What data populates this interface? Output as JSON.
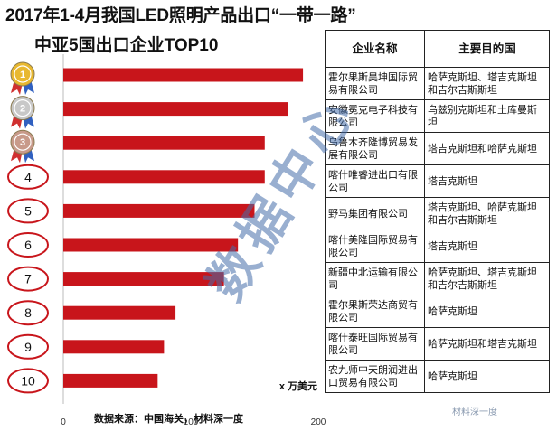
{
  "title_line1": "2017年1-4月我国LED照明产品出口“一带一路”",
  "title_line2": "中亚5国出口企业TOP10",
  "source": "数据来源：中国海关，材料深一度",
  "watermark": "数据中心",
  "brand": "材料深一度",
  "colors": {
    "bar": "#c8151b",
    "medal_gold": "#e8b830",
    "medal_silver": "#c8c8c8",
    "medal_bronze": "#c89a8a",
    "circle": "#c8151b"
  },
  "chart_data": {
    "type": "bar",
    "orientation": "horizontal",
    "categories": [
      "1",
      "2",
      "3",
      "4",
      "5",
      "6",
      "7",
      "8",
      "9",
      "10"
    ],
    "values": [
      188,
      176,
      158,
      158,
      150,
      137,
      126,
      88,
      79,
      74
    ],
    "unit": "x 万美元",
    "xlim": [
      0,
      200
    ],
    "xticks": [
      0,
      100,
      200
    ],
    "grid": false
  },
  "table": {
    "headers": [
      "企业名称",
      "主要目的国"
    ],
    "rows": [
      [
        "霍尔果斯昊坤国际贸易有限公司",
        "哈萨克斯坦、塔吉克斯坦和吉尔吉斯斯坦"
      ],
      [
        "安徽冕克电子科技有限公司",
        "乌兹别克斯坦和土库曼斯坦"
      ],
      [
        "乌鲁木齐隆博贸易发展有限公司",
        "塔吉克斯坦和哈萨克斯坦"
      ],
      [
        "喀什唯睿进出口有限公司",
        "塔吉克斯坦"
      ],
      [
        "野马集团有限公司",
        "塔吉克斯坦、哈萨克斯坦和吉尔吉斯斯坦"
      ],
      [
        "喀什美隆国际贸易有限公司",
        "塔吉克斯坦"
      ],
      [
        "新疆中北运输有限公司",
        "哈萨克斯坦、塔吉克斯坦和吉尔吉斯斯坦"
      ],
      [
        "霍尔果斯荣达商贸有限公司",
        "哈萨克斯坦"
      ],
      [
        "喀什泰旺国际贸易有限公司",
        "哈萨克斯坦和塔吉克斯坦"
      ],
      [
        "农九师中天朗润进出口贸易有限公司",
        "哈萨克斯坦"
      ]
    ]
  }
}
